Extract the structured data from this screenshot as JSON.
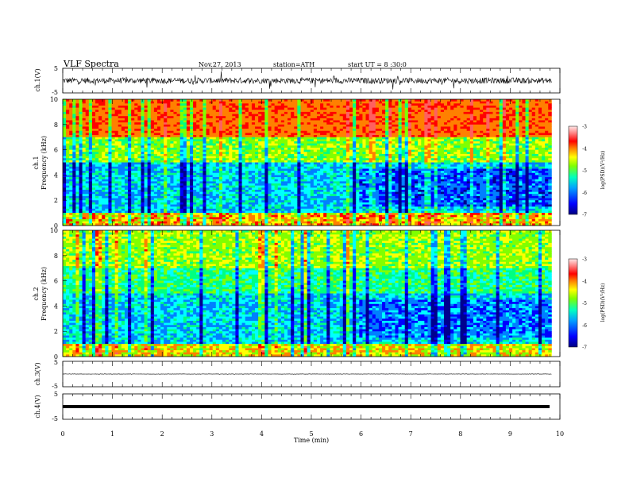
{
  "header": {
    "title": "VLF Spectra",
    "date": "Nov.27, 2013",
    "station": "station=ATH",
    "start_ut": "start UT = 8 :30:0"
  },
  "colors": {
    "jet": [
      "#00008f",
      "#0000ff",
      "#0080ff",
      "#00ffff",
      "#00ff80",
      "#80ff00",
      "#ffff00",
      "#ff8000",
      "#ff0000",
      "#ff6060",
      "#ffd0d0"
    ],
    "trace": "#000000"
  },
  "chart_data": [
    {
      "id": "ch1-waveform",
      "type": "line",
      "ylabel": "ch.1(V)",
      "ylim": [
        -5,
        5
      ],
      "yticks": [
        5,
        -5
      ],
      "xlim": [
        0,
        10
      ],
      "xrange_data": [
        0,
        9.83
      ],
      "description_level": "noisy waveform centered near 0 V, amplitude roughly ±1.5 V with spikes to ±2.5 V"
    },
    {
      "id": "ch1-spectrogram",
      "type": "heatmap",
      "ylabel": "Frequency (kHz)",
      "panel_label": "ch.1",
      "ylim": [
        0,
        10
      ],
      "yticks": [
        0,
        2,
        4,
        6,
        8,
        10
      ],
      "xlim": [
        0,
        10
      ],
      "xrange_data": [
        0,
        9.83
      ],
      "colorbar": {
        "label": "log(PSD)(V²/Hz)",
        "range": [
          -7,
          -3
        ],
        "ticks": [
          "-3",
          "-4",
          "-5",
          "-6",
          "-7"
        ]
      }
    },
    {
      "id": "ch2-spectrogram",
      "type": "heatmap",
      "ylabel": "Frequency (kHz)",
      "panel_label": "ch.2",
      "ylim": [
        0,
        10
      ],
      "yticks": [
        0,
        2,
        4,
        6,
        8,
        10
      ],
      "xlim": [
        0,
        10
      ],
      "xrange_data": [
        0,
        9.83
      ],
      "colorbar": {
        "label": "log(PSD)(V²/Hz)",
        "range": [
          -7,
          -3
        ],
        "ticks": [
          "-3",
          "-4",
          "-5",
          "-6",
          "-7"
        ]
      }
    },
    {
      "id": "ch3-waveform",
      "type": "line",
      "ylabel": "ch.3(V)",
      "ylim": [
        -5,
        5
      ],
      "yticks": [
        5,
        -5
      ],
      "xlim": [
        0,
        10
      ],
      "level": 0
    },
    {
      "id": "ch4-waveform",
      "type": "line",
      "ylabel": "ch.4(V)",
      "ylim": [
        -5,
        5
      ],
      "yticks": [
        5,
        -5
      ],
      "xlim": [
        0,
        10
      ],
      "level": 0
    }
  ],
  "xaxis": {
    "label": "Time (min)",
    "ticks": [
      "0",
      "1",
      "2",
      "3",
      "4",
      "5",
      "6",
      "7",
      "8",
      "9",
      "10"
    ]
  }
}
